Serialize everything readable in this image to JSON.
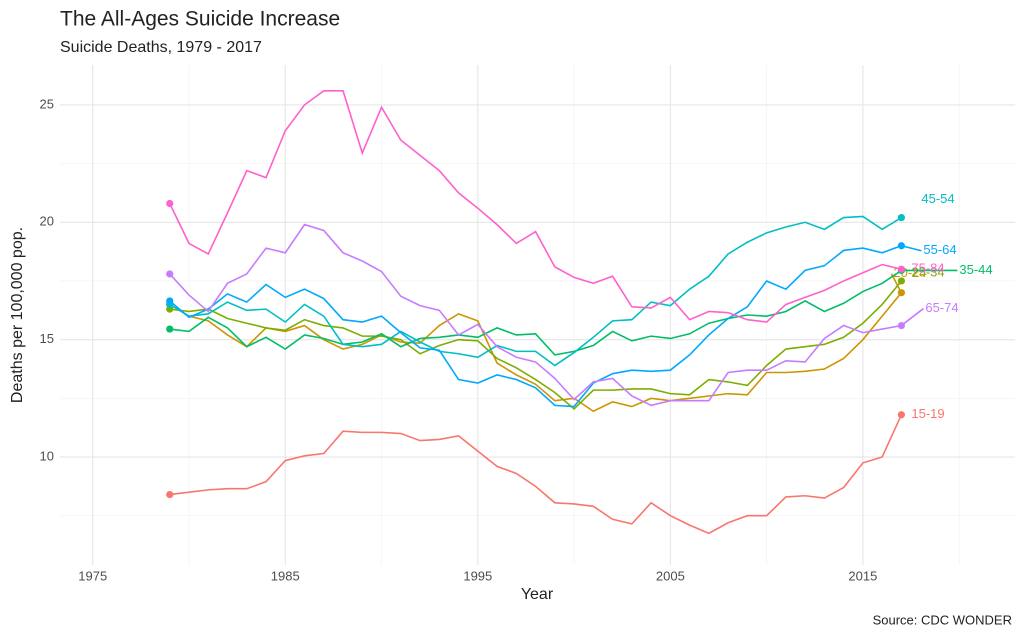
{
  "chart_data": {
    "type": "line",
    "title": "The All-Ages Suicide Increase",
    "subtitle": "Suicide Deaths, 1979 - 2017",
    "x_label": "Year",
    "y_label": "Deaths per 100,000 pop.",
    "caption": "Source: CDC WONDER",
    "x": [
      1979,
      1980,
      1981,
      1982,
      1983,
      1984,
      1985,
      1986,
      1987,
      1988,
      1989,
      1990,
      1991,
      1992,
      1993,
      1994,
      1995,
      1996,
      1997,
      1998,
      1999,
      2000,
      2001,
      2002,
      2003,
      2004,
      2005,
      2006,
      2007,
      2008,
      2009,
      2010,
      2011,
      2012,
      2013,
      2014,
      2015,
      2016,
      2017
    ],
    "xlim": [
      1973.3,
      2022.9
    ],
    "xticks": [
      1975,
      1985,
      1995,
      2005,
      2015
    ],
    "ylim": [
      5.4,
      26.7
    ],
    "yticks": [
      10,
      15,
      20,
      25
    ],
    "grid": true,
    "minor_grid": true,
    "series": [
      {
        "name": "15-19",
        "color": "#F8766D",
        "values": [
          8.4,
          8.5,
          8.6,
          8.65,
          8.65,
          8.95,
          9.85,
          10.05,
          10.15,
          11.1,
          11.05,
          11.05,
          11.0,
          10.7,
          10.75,
          10.9,
          10.25,
          9.6,
          9.3,
          8.75,
          8.05,
          8.0,
          7.9,
          7.35,
          7.15,
          8.05,
          7.5,
          7.1,
          6.75,
          7.2,
          7.5,
          7.5,
          8.3,
          8.35,
          8.25,
          8.7,
          9.75,
          10.0,
          11.8
        ]
      },
      {
        "name": "20-24",
        "color": "#CD9600",
        "values": [
          16.5,
          16.0,
          15.8,
          15.2,
          14.7,
          15.5,
          15.35,
          15.6,
          15.0,
          14.6,
          14.8,
          15.2,
          14.9,
          14.85,
          15.6,
          16.1,
          15.8,
          14.0,
          13.5,
          13.1,
          12.4,
          12.5,
          11.95,
          12.35,
          12.15,
          12.5,
          12.4,
          12.5,
          12.6,
          12.7,
          12.65,
          13.6,
          13.6,
          13.65,
          13.75,
          14.2,
          15.0,
          16.0,
          17.0
        ]
      },
      {
        "name": "25-34",
        "color": "#7CAE00",
        "values": [
          16.3,
          16.2,
          16.3,
          15.9,
          15.7,
          15.5,
          15.4,
          15.85,
          15.6,
          15.5,
          15.15,
          15.15,
          15.0,
          14.4,
          14.75,
          15.0,
          14.95,
          14.2,
          13.8,
          13.3,
          12.75,
          12.05,
          12.85,
          12.85,
          12.9,
          12.9,
          12.7,
          12.65,
          13.3,
          13.2,
          13.05,
          13.9,
          14.6,
          14.7,
          14.8,
          15.1,
          15.7,
          16.5,
          17.5
        ]
      },
      {
        "name": "35-44",
        "color": "#00BE67",
        "values": [
          15.45,
          15.35,
          15.95,
          15.5,
          14.7,
          15.1,
          14.6,
          15.2,
          15.05,
          14.8,
          14.9,
          15.25,
          14.7,
          15.05,
          15.1,
          15.2,
          15.1,
          15.5,
          15.2,
          15.25,
          14.35,
          14.5,
          14.75,
          15.35,
          14.95,
          15.15,
          15.05,
          15.25,
          15.7,
          15.9,
          16.05,
          16.0,
          16.2,
          16.65,
          16.2,
          16.55,
          17.05,
          17.4,
          17.95
        ]
      },
      {
        "name": "45-54",
        "color": "#00BFC4",
        "values": [
          16.5,
          16.0,
          16.1,
          16.6,
          16.25,
          16.3,
          15.75,
          16.5,
          16.0,
          14.8,
          14.7,
          14.8,
          15.35,
          14.9,
          14.5,
          14.4,
          14.25,
          14.75,
          14.5,
          14.5,
          13.9,
          14.45,
          15.1,
          15.8,
          15.85,
          16.6,
          16.45,
          17.15,
          17.7,
          18.65,
          19.15,
          19.55,
          19.8,
          20.0,
          19.7,
          20.2,
          20.25,
          19.7,
          20.2
        ]
      },
      {
        "name": "55-64",
        "color": "#00A9FF",
        "values": [
          16.65,
          15.95,
          16.3,
          16.95,
          16.6,
          17.35,
          16.8,
          17.15,
          16.75,
          15.85,
          15.75,
          16.0,
          15.3,
          14.65,
          14.55,
          13.3,
          13.15,
          13.5,
          13.3,
          12.95,
          12.2,
          12.15,
          13.15,
          13.55,
          13.7,
          13.65,
          13.7,
          14.35,
          15.2,
          15.9,
          16.4,
          17.5,
          17.15,
          17.95,
          18.15,
          18.8,
          18.9,
          18.7,
          19.0
        ]
      },
      {
        "name": "65-74",
        "color": "#C77CFF",
        "values": [
          17.8,
          16.9,
          16.2,
          17.4,
          17.8,
          18.9,
          18.7,
          19.9,
          19.65,
          18.7,
          18.35,
          17.9,
          16.85,
          16.45,
          16.25,
          15.2,
          15.65,
          14.7,
          14.25,
          14.05,
          13.35,
          12.45,
          13.2,
          13.35,
          12.6,
          12.2,
          12.4,
          12.4,
          12.4,
          13.6,
          13.7,
          13.7,
          14.1,
          14.05,
          15.05,
          15.6,
          15.3,
          15.45,
          15.6
        ]
      },
      {
        "name": "75-84",
        "color": "#FF61CC",
        "values": [
          20.8,
          19.1,
          18.65,
          20.4,
          22.2,
          21.9,
          23.9,
          25.0,
          25.6,
          25.6,
          22.95,
          24.9,
          23.5,
          22.85,
          22.2,
          21.25,
          20.6,
          19.9,
          19.1,
          19.6,
          18.1,
          17.65,
          17.4,
          17.7,
          16.4,
          16.35,
          16.8,
          15.85,
          16.2,
          16.15,
          15.85,
          15.75,
          16.5,
          16.8,
          17.1,
          17.5,
          17.85,
          18.2,
          18.0
        ]
      }
    ]
  }
}
